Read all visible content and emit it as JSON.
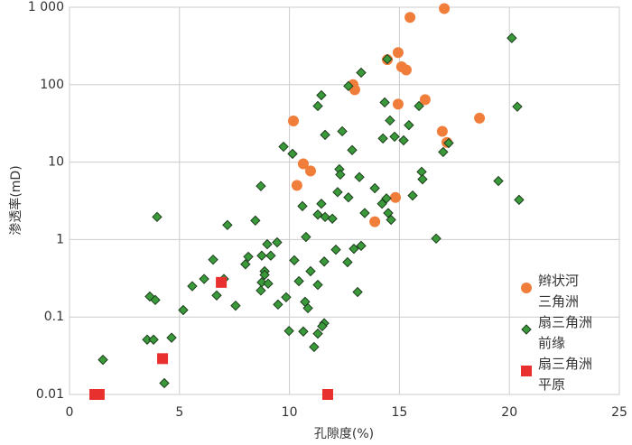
{
  "chart_data": {
    "type": "scatter",
    "x_label": "孔隙度(%)",
    "y_label": "渗透率(mD)",
    "xlim": [
      0,
      25
    ],
    "xticks": [
      0,
      5,
      10,
      15,
      20,
      25
    ],
    "ylim": [
      0.01,
      1000
    ],
    "yticks": [
      0.01,
      0.1,
      1,
      10,
      100,
      {
        "value": 1000,
        "label": "1 000"
      }
    ],
    "y_log": true,
    "grid": true,
    "legend_position": "right",
    "series": [
      {
        "name": "辫状河\n三角洲",
        "color": "#f07e3a",
        "marker": "circle",
        "x": [
          17.04,
          15.48,
          14.94,
          14.45,
          15.1,
          15.31,
          12.89,
          12.97,
          16.17,
          14.94,
          18.64,
          10.18,
          16.95,
          17.16,
          10.63,
          10.96,
          10.34,
          14.82,
          13.88
        ],
        "values": [
          960,
          740,
          260,
          210,
          170,
          155,
          100,
          86,
          64,
          56,
          37,
          34,
          25,
          18,
          9.5,
          7.7,
          5,
          3.5,
          1.7
        ]
      },
      {
        "name": "扇三角洲\n前缘",
        "color": "#3a9a3a",
        "marker": "diamond",
        "x": [
          20.11,
          20.36,
          20.44,
          19.5,
          16.67,
          13.26,
          14.45,
          12.68,
          11.45,
          11.29,
          14.33,
          15.89,
          14.57,
          15.43,
          12.4,
          11.62,
          14.78,
          14.25,
          15.19,
          17.24,
          16.99,
          9.73,
          10.14,
          12.85,
          12.27,
          12.31,
          13.18,
          16.01,
          16.05,
          13.88,
          8.7,
          14.41,
          14.21,
          15.6,
          12.19,
          12.68,
          10.59,
          11.45,
          14.49,
          14.62,
          13.42,
          11.29,
          11.62,
          11.95,
          7.18,
          8.45,
          10.75,
          3.98,
          9.44,
          8.99,
          13.26,
          12.93,
          12.11,
          6.53,
          8.13,
          8.74,
          9.15,
          10.22,
          11.58,
          12.64,
          8.0,
          6.12,
          5.58,
          7.02,
          8.87,
          8.87,
          8.74,
          9.03,
          8.7,
          10.96,
          10.43,
          11.29,
          6.69,
          7.55,
          9.85,
          9.48,
          10.71,
          13.1,
          10.84,
          3.65,
          3.9,
          5.17,
          9.98,
          10.63,
          11.58,
          11.49,
          11.29,
          11.12,
          3.53,
          3.82,
          4.64,
          1.52,
          4.31
        ],
        "values": [
          400,
          52,
          3.26,
          5.7,
          1.03,
          143,
          214,
          96,
          73,
          53,
          59,
          53,
          34.5,
          30,
          25,
          22.5,
          21.3,
          20.2,
          19.1,
          17.6,
          13.5,
          15.8,
          12.8,
          14.3,
          8.1,
          6.9,
          6.4,
          7.5,
          6.0,
          4.6,
          4.9,
          3.4,
          2.9,
          3.7,
          4.1,
          3.5,
          2.7,
          2.9,
          2.2,
          1.8,
          2.2,
          2.1,
          1.96,
          1.86,
          1.54,
          1.76,
          1.08,
          1.96,
          0.92,
          0.87,
          0.83,
          0.76,
          0.74,
          0.55,
          0.6,
          0.62,
          0.62,
          0.54,
          0.52,
          0.51,
          0.48,
          0.31,
          0.25,
          0.31,
          0.39,
          0.35,
          0.28,
          0.27,
          0.22,
          0.39,
          0.29,
          0.26,
          0.19,
          0.14,
          0.18,
          0.145,
          0.157,
          0.21,
          0.13,
          0.184,
          0.166,
          0.123,
          0.066,
          0.065,
          0.083,
          0.076,
          0.061,
          0.041,
          0.051,
          0.051,
          0.054,
          0.028,
          0.014
        ]
      },
      {
        "name": "扇三角洲\n平原",
        "color": "#e8312e",
        "marker": "square",
        "x": [
          1.15,
          1.35,
          4.23,
          6.9,
          11.74
        ],
        "values": [
          0.01,
          0.01,
          0.029,
          0.28,
          0.01
        ]
      }
    ]
  }
}
